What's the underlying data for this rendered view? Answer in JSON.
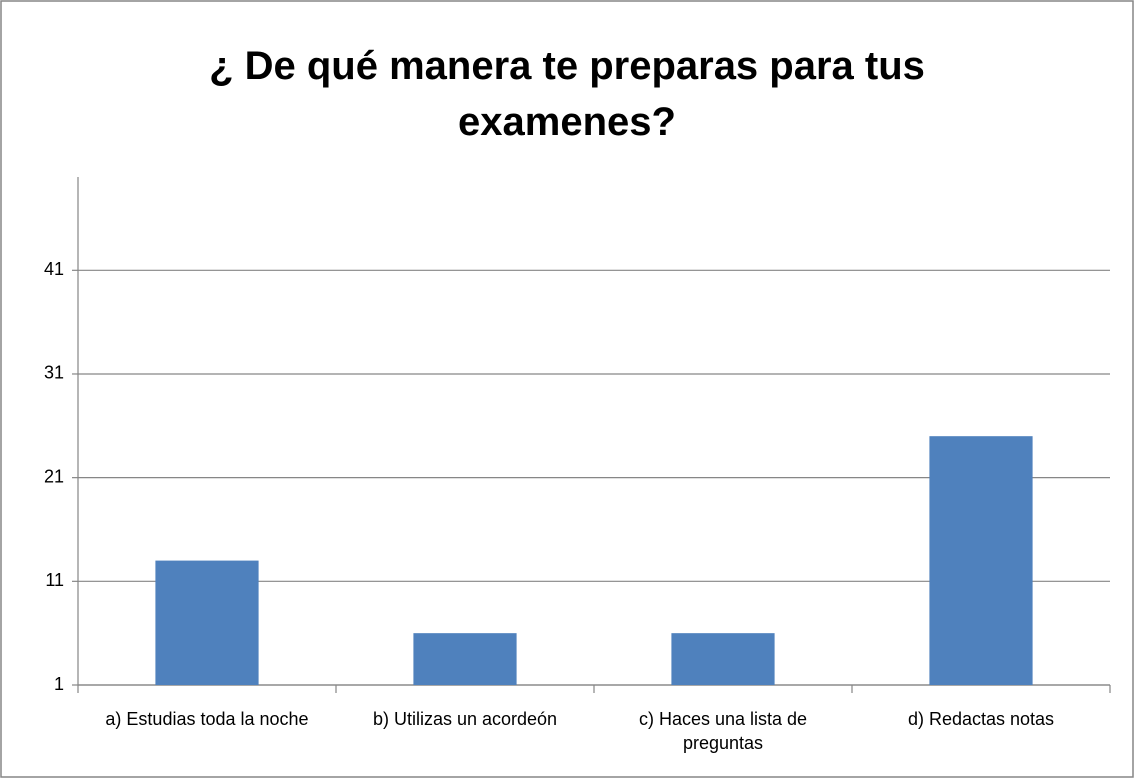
{
  "chart_data": {
    "type": "bar",
    "title": "¿ De qué manera te preparas para tus examenes?",
    "categories": [
      "a) Estudias toda la noche",
      "b) Utilizas un acordeón",
      "c) Haces una lista de preguntas",
      "d) Redactas notas"
    ],
    "values": [
      13,
      6,
      6,
      25
    ],
    "color": "#4f81bd",
    "ylim": [
      1,
      50
    ],
    "yticks": [
      1,
      11,
      21,
      31,
      41
    ],
    "grid": true
  }
}
